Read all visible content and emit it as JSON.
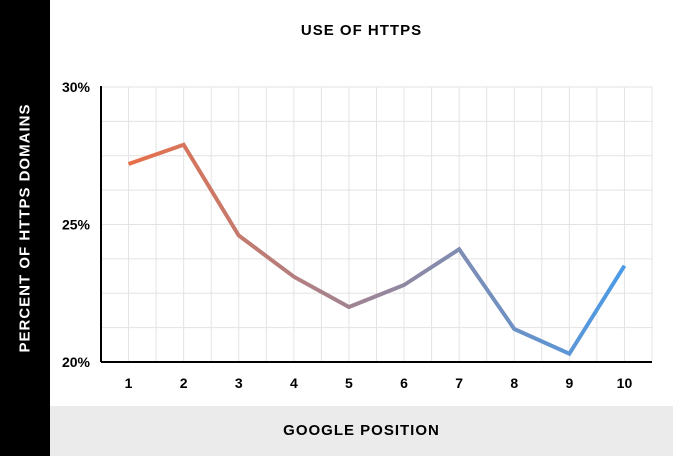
{
  "chart_data": {
    "type": "line",
    "title": "USE OF HTTPS",
    "xlabel": "GOOGLE POSITION",
    "ylabel": "PERCENT OF HTTPS DOMAINS",
    "categories": [
      "1",
      "2",
      "3",
      "4",
      "5",
      "6",
      "7",
      "8",
      "9",
      "10"
    ],
    "values": [
      27.2,
      27.9,
      24.6,
      23.1,
      22.0,
      22.8,
      24.1,
      21.2,
      20.3,
      23.5
    ],
    "ylim": [
      20,
      30
    ],
    "yticks": [
      "30%",
      "25%",
      "20%"
    ],
    "grid": true,
    "line_colors": [
      "#e8704a",
      "#4a9be8"
    ]
  }
}
